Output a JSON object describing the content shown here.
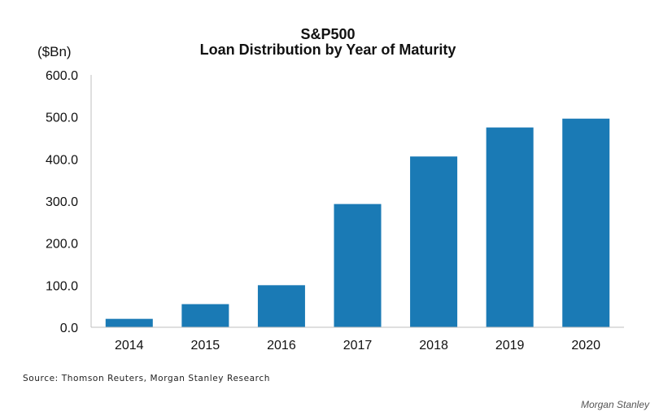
{
  "chart_data": {
    "type": "bar",
    "title": "S&P500",
    "subtitle": "Loan Distribution by Year of Maturity",
    "ylabel": "($Bn)",
    "xlabel": "",
    "categories": [
      "2014",
      "2015",
      "2016",
      "2017",
      "2018",
      "2019",
      "2020"
    ],
    "values": [
      20,
      55,
      100,
      293,
      406,
      475,
      496
    ],
    "ylim": [
      0,
      600
    ],
    "yticks": [
      "0.0",
      "100.0",
      "200.0",
      "300.0",
      "400.0",
      "500.0",
      "600.0"
    ],
    "bar_color": "#1a7ab5",
    "grid": false,
    "legend": "none"
  },
  "source": "Source: Thomson Reuters, Morgan Stanley Research",
  "brand": "Morgan Stanley"
}
